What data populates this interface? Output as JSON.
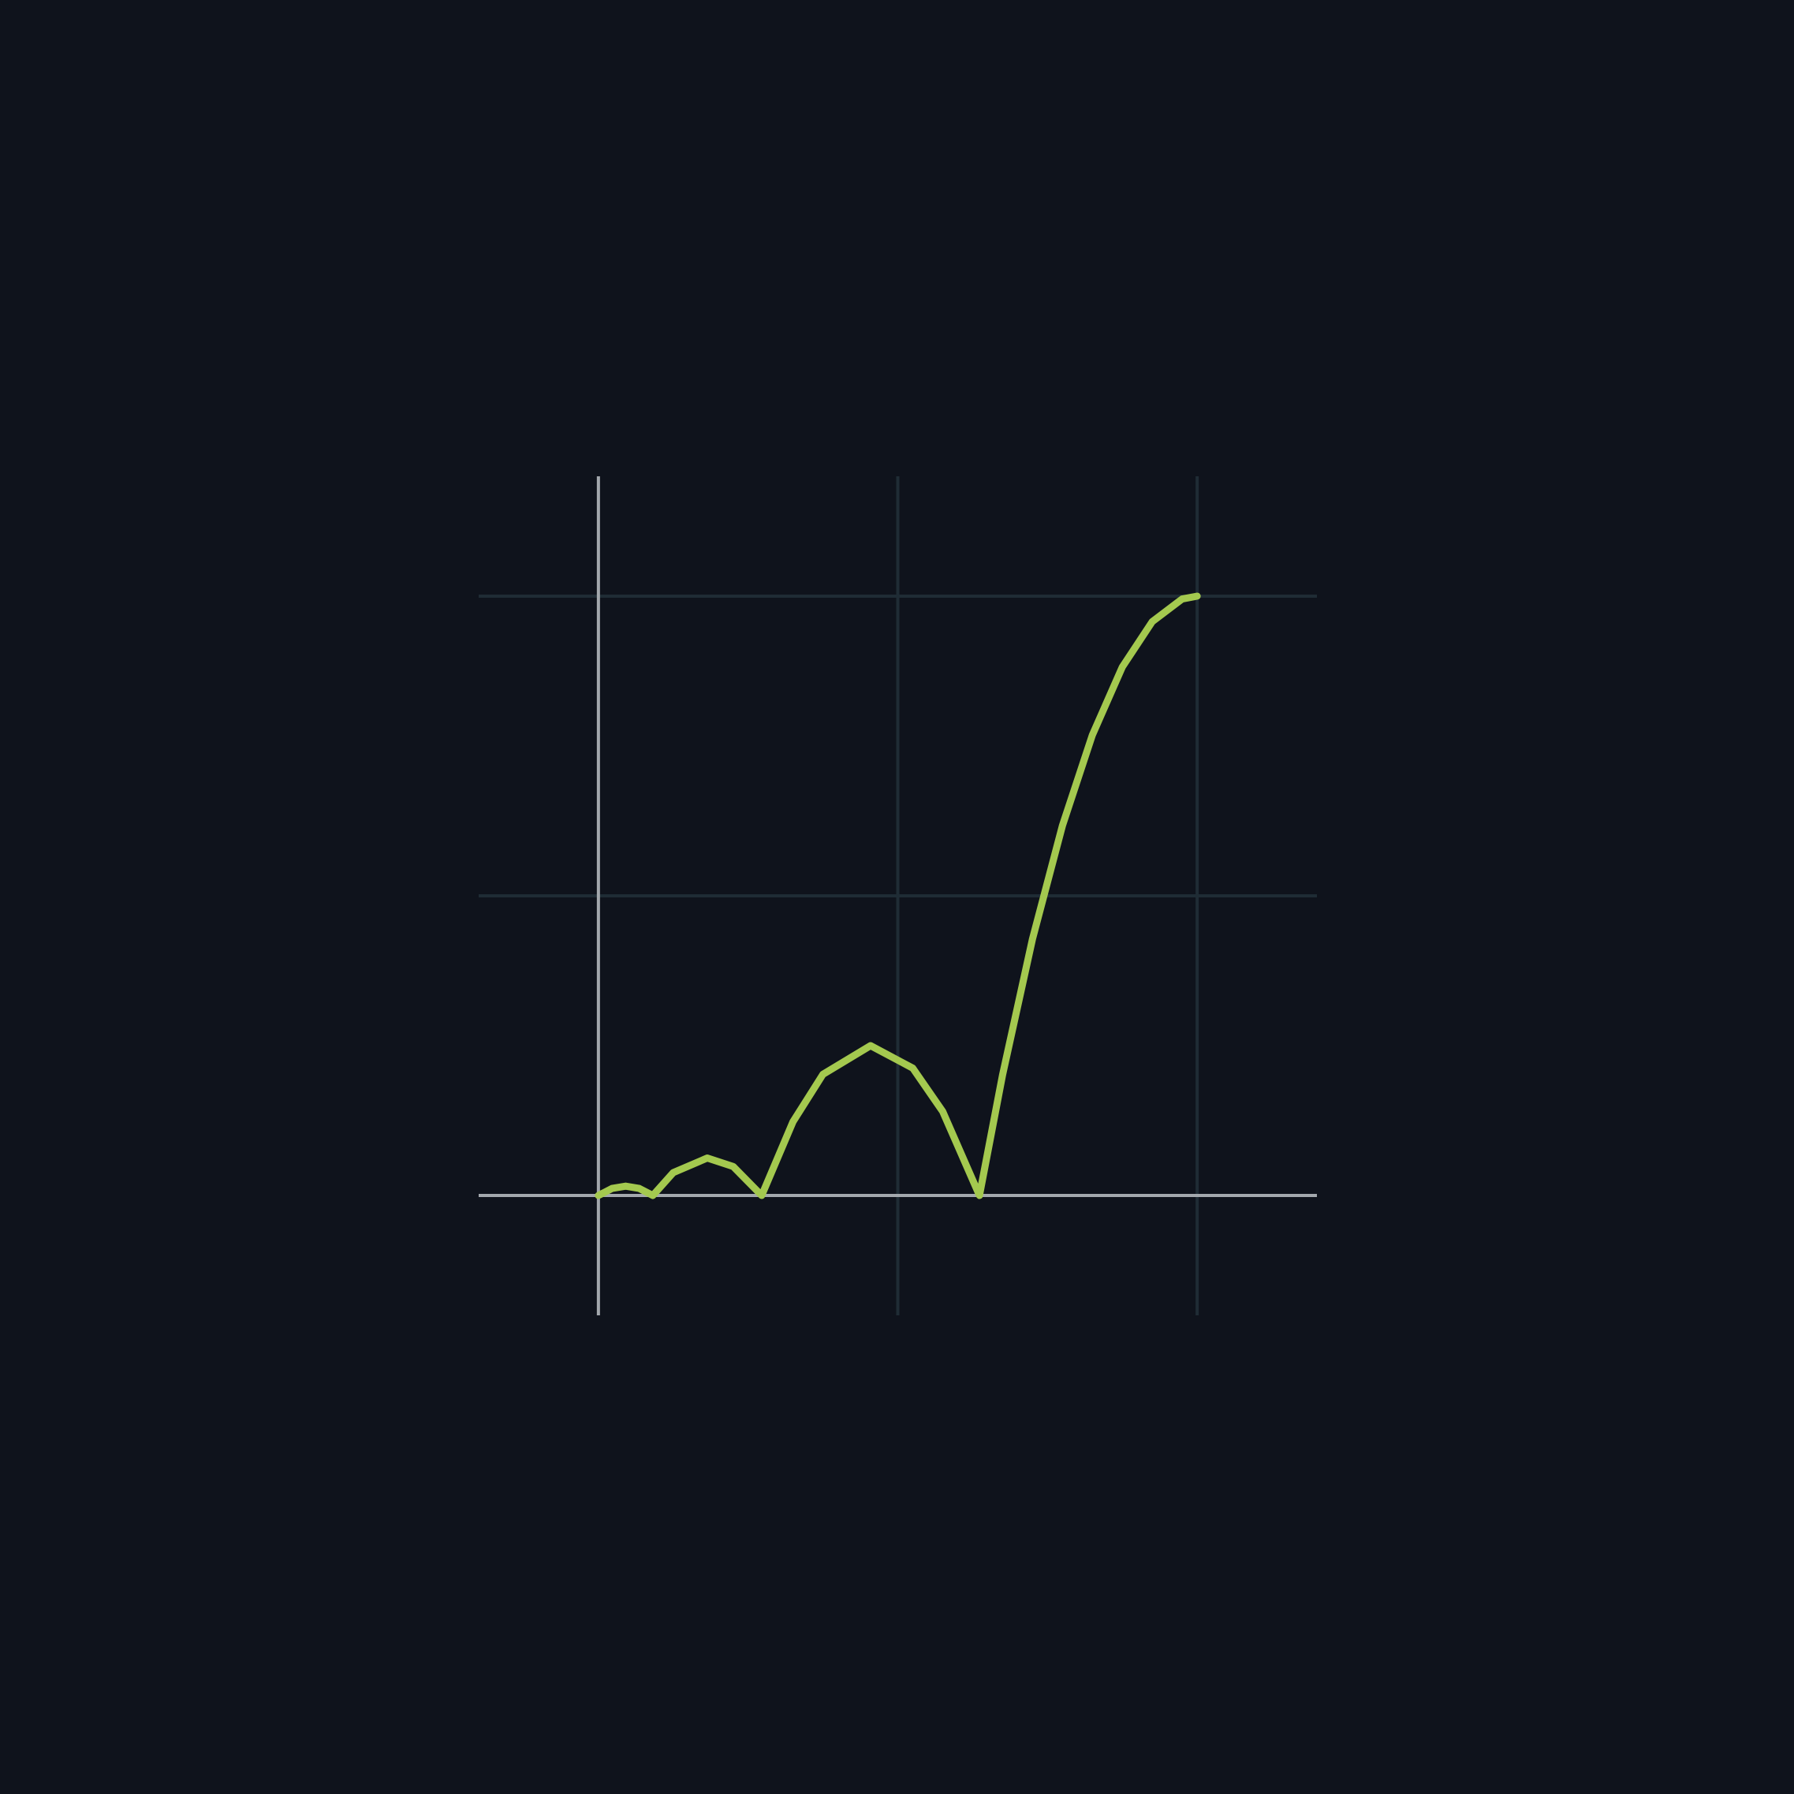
{
  "chart_data": {
    "type": "line",
    "x": [
      0,
      0.0227,
      0.0455,
      0.0682,
      0.0909,
      0.125,
      0.1818,
      0.225,
      0.2727,
      0.325,
      0.375,
      0.4545,
      0.525,
      0.575,
      0.6364,
      0.675,
      0.725,
      0.775,
      0.825,
      0.875,
      0.925,
      0.975,
      1
    ],
    "series": [
      {
        "color": "#a4c94f",
        "values": [
          0,
          0.0117,
          0.0156,
          0.0117,
          0,
          0.0381,
          0.0625,
          0.0484,
          0,
          0.1231,
          0.2021,
          0.25,
          0.2125,
          0.1402,
          0,
          0.2012,
          0.4281,
          0.6172,
          0.7684,
          0.8818,
          0.9575,
          0.9953,
          1
        ]
      }
    ],
    "xlim": [
      -0.2,
      1.2
    ],
    "ylim": [
      -0.2,
      1.2
    ],
    "xticks": [
      0,
      0.5,
      1
    ],
    "yticks": [
      0,
      0.5,
      1
    ],
    "grid": true
  }
}
